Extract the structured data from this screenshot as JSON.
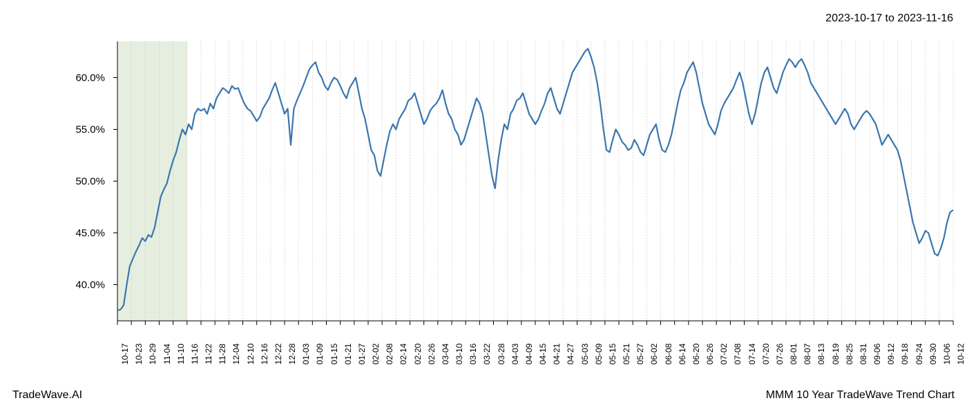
{
  "header": {
    "date_range": "2023-10-17 to 2023-11-16"
  },
  "footer": {
    "left": "TradeWave.AI",
    "right": "MMM 10 Year TradeWave Trend Chart"
  },
  "chart": {
    "type": "line",
    "background_color": "#ffffff",
    "grid_color": "#cccccc",
    "line_color": "#3a76af",
    "line_width": 2.2,
    "highlight_band": {
      "fill_color": "#dde8d5",
      "opacity": 0.75,
      "x_start": "10-17",
      "x_end": "11-16"
    },
    "axis_color": "#000000",
    "tick_color": "#000000",
    "minor_grid_dash": "2,2",
    "y_axis": {
      "min": 36.5,
      "max": 63.5,
      "ticks": [
        40.0,
        45.0,
        50.0,
        55.0,
        60.0
      ],
      "tick_labels": [
        "40.0%",
        "45.0%",
        "50.0%",
        "55.0%",
        "60.0%"
      ],
      "label_fontsize": 15
    },
    "x_axis": {
      "tick_labels": [
        "10-17",
        "10-23",
        "10-29",
        "11-04",
        "11-10",
        "11-16",
        "11-22",
        "11-28",
        "12-04",
        "12-10",
        "12-16",
        "12-22",
        "12-28",
        "01-03",
        "01-09",
        "01-15",
        "01-21",
        "01-27",
        "02-02",
        "02-08",
        "02-14",
        "02-20",
        "02-26",
        "03-04",
        "03-10",
        "03-16",
        "03-22",
        "03-28",
        "04-03",
        "04-09",
        "04-15",
        "04-21",
        "04-27",
        "05-03",
        "05-09",
        "05-15",
        "05-21",
        "05-27",
        "06-02",
        "06-08",
        "06-14",
        "06-20",
        "06-26",
        "07-02",
        "07-08",
        "07-14",
        "07-20",
        "07-26",
        "08-01",
        "08-07",
        "08-13",
        "08-19",
        "08-25",
        "08-31",
        "09-06",
        "09-12",
        "09-18",
        "09-24",
        "09-30",
        "10-06",
        "10-12"
      ],
      "label_fontsize": 12,
      "rotation": -90
    },
    "series": {
      "name": "MMM trend",
      "values": [
        37.5,
        37.6,
        38.0,
        40.0,
        41.8,
        42.5,
        43.2,
        43.8,
        44.5,
        44.2,
        44.8,
        44.6,
        45.5,
        47.0,
        48.5,
        49.2,
        49.8,
        51.0,
        52.0,
        52.8,
        54.0,
        55.0,
        54.5,
        55.5,
        55.0,
        56.5,
        57.0,
        56.8,
        57.0,
        56.5,
        57.5,
        57.0,
        58.0,
        58.5,
        59.0,
        58.8,
        58.5,
        59.2,
        58.9,
        59.0,
        58.2,
        57.5,
        57.0,
        56.8,
        56.3,
        55.8,
        56.2,
        57.0,
        57.5,
        58.0,
        58.8,
        59.5,
        58.5,
        57.5,
        56.5,
        57.0,
        53.5,
        57.0,
        57.8,
        58.5,
        59.2,
        60.0,
        60.8,
        61.2,
        61.5,
        60.5,
        60.0,
        59.2,
        58.8,
        59.5,
        60.0,
        59.8,
        59.2,
        58.5,
        58.0,
        59.0,
        59.5,
        60.0,
        58.5,
        57.0,
        56.0,
        54.5,
        53.0,
        52.5,
        51.0,
        50.5,
        52.0,
        53.5,
        54.8,
        55.5,
        55.0,
        56.0,
        56.5,
        57.0,
        57.8,
        58.0,
        58.5,
        57.5,
        56.5,
        55.5,
        56.0,
        56.8,
        57.2,
        57.5,
        58.0,
        58.8,
        57.5,
        56.5,
        56.0,
        55.0,
        54.5,
        53.5,
        54.0,
        55.0,
        56.0,
        57.0,
        58.0,
        57.5,
        56.5,
        54.5,
        52.5,
        50.5,
        49.3,
        52.0,
        54.0,
        55.5,
        55.0,
        56.5,
        57.0,
        57.8,
        58.0,
        58.5,
        57.5,
        56.5,
        56.0,
        55.5,
        56.0,
        56.8,
        57.5,
        58.5,
        59.0,
        58.0,
        57.0,
        56.5,
        57.5,
        58.5,
        59.5,
        60.5,
        61.0,
        61.5,
        62.0,
        62.5,
        62.8,
        62.0,
        61.0,
        59.5,
        57.5,
        55.0,
        53.0,
        52.8,
        54.0,
        55.0,
        54.5,
        53.8,
        53.5,
        53.0,
        53.2,
        54.0,
        53.5,
        52.8,
        52.5,
        53.5,
        54.5,
        55.0,
        55.5,
        54.0,
        53.0,
        52.8,
        53.5,
        54.5,
        56.0,
        57.5,
        58.8,
        59.5,
        60.5,
        61.0,
        61.5,
        60.5,
        59.0,
        57.5,
        56.5,
        55.5,
        55.0,
        54.5,
        55.5,
        56.8,
        57.5,
        58.0,
        58.5,
        59.0,
        59.8,
        60.5,
        59.5,
        58.0,
        56.5,
        55.5,
        56.5,
        58.0,
        59.5,
        60.5,
        61.0,
        60.0,
        59.0,
        58.5,
        59.5,
        60.5,
        61.2,
        61.8,
        61.5,
        61.0,
        61.5,
        61.8,
        61.2,
        60.5,
        59.5,
        59.0,
        58.5,
        58.0,
        57.5,
        57.0,
        56.5,
        56.0,
        55.5,
        56.0,
        56.5,
        57.0,
        56.5,
        55.5,
        55.0,
        55.5,
        56.0,
        56.5,
        56.8,
        56.5,
        56.0,
        55.5,
        54.5,
        53.5,
        54.0,
        54.5,
        54.0,
        53.5,
        53.0,
        52.0,
        50.5,
        49.0,
        47.5,
        46.0,
        45.0,
        44.0,
        44.5,
        45.2,
        45.0,
        44.0,
        43.0,
        42.8,
        43.5,
        44.5,
        46.0,
        47.0,
        47.2
      ]
    }
  }
}
